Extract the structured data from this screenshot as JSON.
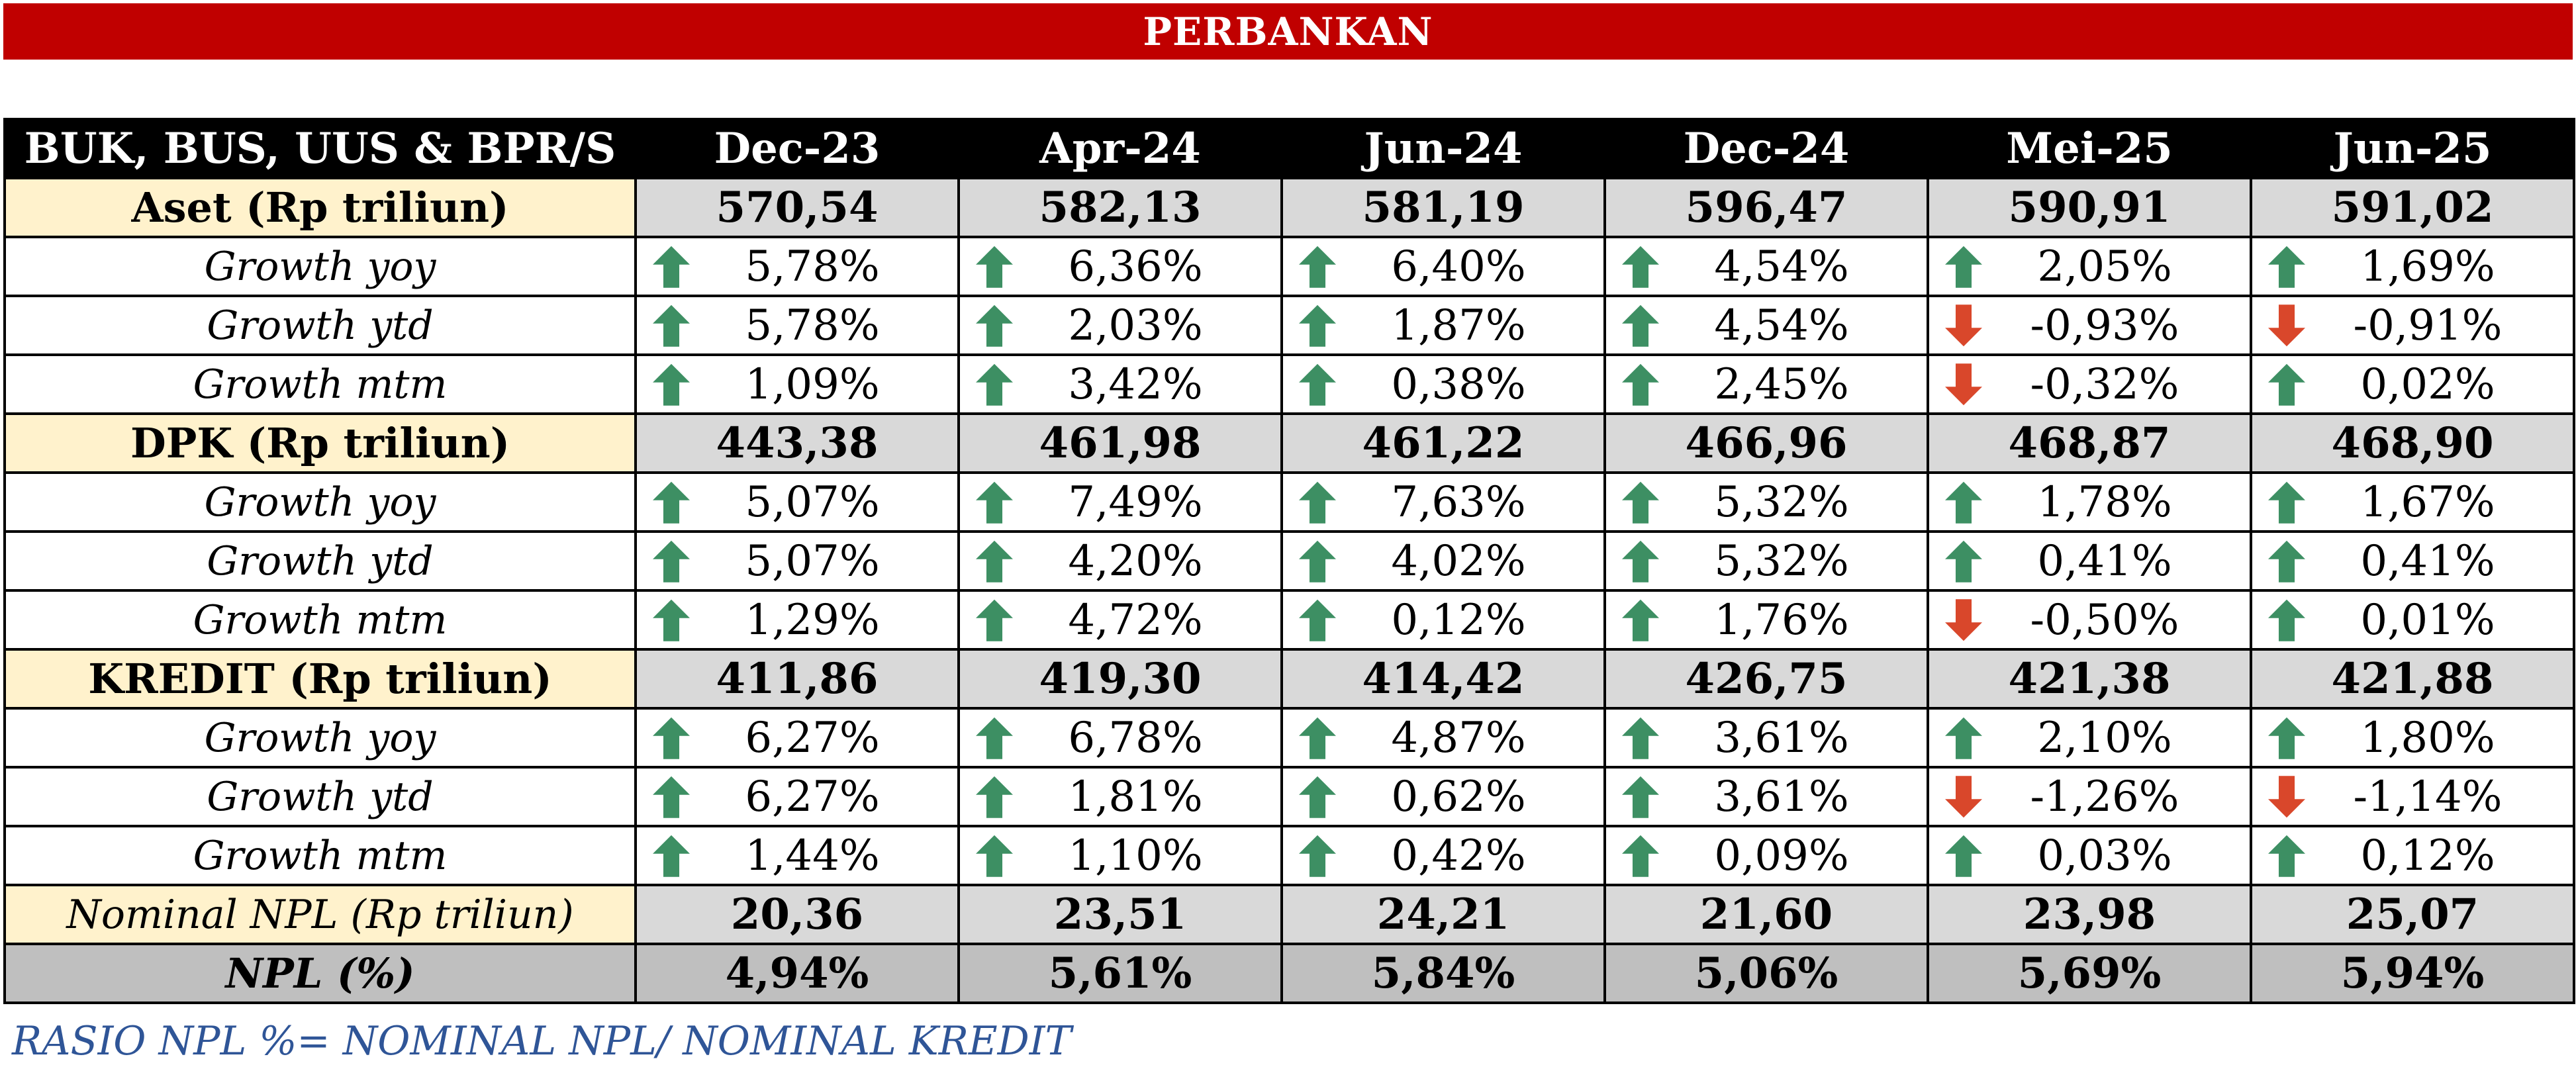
{
  "banner": {
    "title": "PERBANKAN"
  },
  "table": {
    "header": [
      "BUK, BUS, UUS & BPR/S",
      "Dec-23",
      "Apr-24",
      "Jun-24",
      "Dec-24",
      "Mei-25",
      "Jun-25"
    ],
    "colors": {
      "up": "#3d8f63",
      "down": "#d9472b",
      "main_bg": "#fff2cc",
      "value_bg": "#d9d9d9"
    },
    "rows": [
      {
        "label": "Aset (Rp triliun)",
        "type": "main",
        "values": [
          "570,54",
          "582,13",
          "581,19",
          "596,47",
          "590,91",
          "591,02"
        ]
      },
      {
        "label": "Growth yoy",
        "type": "growth",
        "values": [
          "5,78%",
          "6,36%",
          "6,40%",
          "4,54%",
          "2,05%",
          "1,69%"
        ],
        "arrows": [
          "up",
          "up",
          "up",
          "up",
          "up",
          "up"
        ]
      },
      {
        "label": "Growth ytd",
        "type": "growth",
        "values": [
          "5,78%",
          "2,03%",
          "1,87%",
          "4,54%",
          "-0,93%",
          "-0,91%"
        ],
        "arrows": [
          "up",
          "up",
          "up",
          "up",
          "down",
          "down"
        ]
      },
      {
        "label": "Growth mtm",
        "type": "growth",
        "values": [
          "1,09%",
          "3,42%",
          "0,38%",
          "2,45%",
          "-0,32%",
          "0,02%"
        ],
        "arrows": [
          "up",
          "up",
          "up",
          "up",
          "down",
          "up"
        ]
      },
      {
        "label": "DPK (Rp triliun)",
        "type": "main",
        "values": [
          "443,38",
          "461,98",
          "461,22",
          "466,96",
          "468,87",
          "468,90"
        ]
      },
      {
        "label": "Growth yoy",
        "type": "growth",
        "values": [
          "5,07%",
          "7,49%",
          "7,63%",
          "5,32%",
          "1,78%",
          "1,67%"
        ],
        "arrows": [
          "up",
          "up",
          "up",
          "up",
          "up",
          "up"
        ]
      },
      {
        "label": "Growth ytd",
        "type": "growth",
        "values": [
          "5,07%",
          "4,20%",
          "4,02%",
          "5,32%",
          "0,41%",
          "0,41%"
        ],
        "arrows": [
          "up",
          "up",
          "up",
          "up",
          "up",
          "up"
        ]
      },
      {
        "label": "Growth mtm",
        "type": "growth",
        "values": [
          "1,29%",
          "4,72%",
          "0,12%",
          "1,76%",
          "-0,50%",
          "0,01%"
        ],
        "arrows": [
          "up",
          "up",
          "up",
          "up",
          "down",
          "up"
        ]
      },
      {
        "label": "KREDIT  (Rp triliun)",
        "type": "main",
        "values": [
          "411,86",
          "419,30",
          "414,42",
          "426,75",
          "421,38",
          "421,88"
        ]
      },
      {
        "label": "Growth yoy",
        "type": "growth",
        "values": [
          "6,27%",
          "6,78%",
          "4,87%",
          "3,61%",
          "2,10%",
          "1,80%"
        ],
        "arrows": [
          "up",
          "up",
          "up",
          "up",
          "up",
          "up"
        ]
      },
      {
        "label": "Growth ytd",
        "type": "growth",
        "values": [
          "6,27%",
          "1,81%",
          "0,62%",
          "3,61%",
          "-1,26%",
          "-1,14%"
        ],
        "arrows": [
          "up",
          "up",
          "up",
          "up",
          "down",
          "down"
        ]
      },
      {
        "label": "Growth mtm",
        "type": "growth",
        "values": [
          "1,44%",
          "1,10%",
          "0,42%",
          "0,09%",
          "0,03%",
          "0,12%"
        ],
        "arrows": [
          "up",
          "up",
          "up",
          "up",
          "up",
          "up"
        ]
      },
      {
        "label": "Nominal NPL (Rp triliun)",
        "type": "npl-nom",
        "values": [
          "20,36",
          "23,51",
          "24,21",
          "21,60",
          "23,98",
          "25,07"
        ]
      },
      {
        "label": "NPL (%)",
        "type": "npl-pct",
        "values": [
          "4,94%",
          "5,61%",
          "5,84%",
          "5,06%",
          "5,69%",
          "5,94%"
        ]
      }
    ]
  },
  "footer": {
    "note": "RASIO NPL %= NOMINAL NPL/ NOMINAL KREDIT"
  }
}
